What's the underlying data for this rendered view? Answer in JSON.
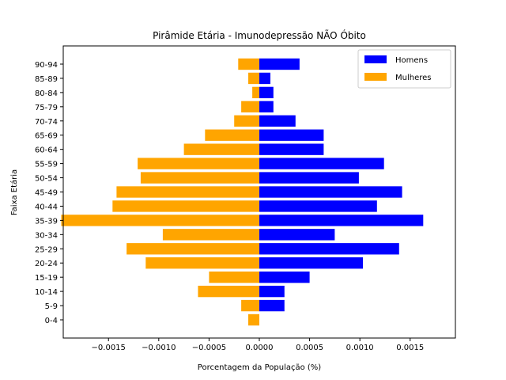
{
  "chart_data": {
    "type": "bar",
    "orientation": "horizontal",
    "title": "Pirâmide Etária - Imunodepressão NÃO Óbito",
    "xlabel": "Porcentagem da População (%)",
    "ylabel": "Faixa Etária",
    "xlim": [
      -0.00195,
      0.00195
    ],
    "x_ticks": [
      -0.0015,
      -0.001,
      -0.0005,
      0.0,
      0.0005,
      0.001,
      0.0015
    ],
    "x_tick_labels": [
      "−0.0015",
      "−0.0010",
      "−0.0005",
      "0.0000",
      "0.0005",
      "0.0010",
      "0.0015"
    ],
    "categories": [
      "0-4",
      "5-9",
      "10-14",
      "15-19",
      "20-24",
      "25-29",
      "30-34",
      "35-39",
      "40-44",
      "45-49",
      "50-54",
      "55-59",
      "60-64",
      "65-69",
      "70-74",
      "75-79",
      "80-84",
      "85-89",
      "90-94"
    ],
    "series": [
      {
        "name": "Homens",
        "color": "#0000ff",
        "values": [
          0.0,
          0.00025,
          0.00025,
          0.0005,
          0.00103,
          0.00139,
          0.00075,
          0.00163,
          0.00117,
          0.00142,
          0.00099,
          0.00124,
          0.00064,
          0.00064,
          0.00036,
          0.00014,
          0.00014,
          0.00011,
          0.0004
        ]
      },
      {
        "name": "Mulheres",
        "color": "#ffa500",
        "values": [
          -0.00011,
          -0.00018,
          -0.00061,
          -0.0005,
          -0.00113,
          -0.00132,
          -0.00096,
          -0.00197,
          -0.00146,
          -0.00142,
          -0.00118,
          -0.00121,
          -0.00075,
          -0.00054,
          -0.00025,
          -0.00018,
          -7e-05,
          -0.00011,
          -0.00021
        ]
      }
    ],
    "legend_position": "top-right",
    "grid": false
  }
}
